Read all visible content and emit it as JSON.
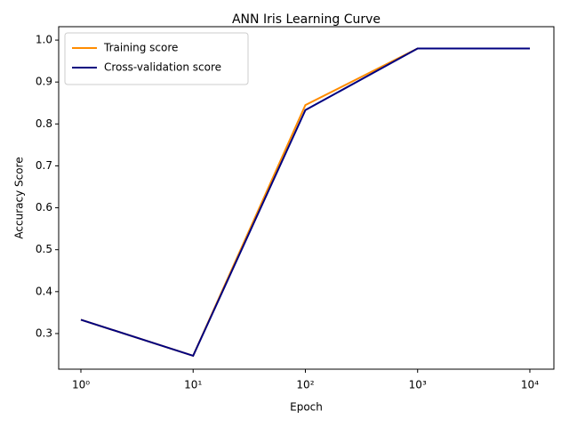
{
  "chart_data": {
    "type": "line",
    "title": "ANN Iris Learning Curve",
    "x_label": "Epoch",
    "y_label": "Accuracy Score",
    "x": [
      1,
      10,
      100,
      1000,
      10000
    ],
    "x_scale": "log",
    "series": [
      {
        "name": "Training score",
        "color": "#ff8c00",
        "values": [
          0.333,
          0.247,
          0.845,
          0.98,
          0.98
        ]
      },
      {
        "name": "Cross-validation score",
        "color": "#000080",
        "values": [
          0.333,
          0.247,
          0.833,
          0.98,
          0.98
        ]
      }
    ],
    "xlim": [
      0.634,
      16370
    ],
    "xticks": [
      {
        "value": 1,
        "label": "10⁰"
      },
      {
        "value": 10,
        "label": "10¹"
      },
      {
        "value": 100,
        "label": "10²"
      },
      {
        "value": 1000,
        "label": "10³"
      },
      {
        "value": 10000,
        "label": "10⁴"
      }
    ],
    "ylim": [
      0.215,
      1.032
    ],
    "yticks": [
      0.3,
      0.4,
      0.5,
      0.6,
      0.7,
      0.8,
      0.9,
      {
        "value": 1,
        "label": "1.0"
      }
    ],
    "legend": "upper left"
  }
}
